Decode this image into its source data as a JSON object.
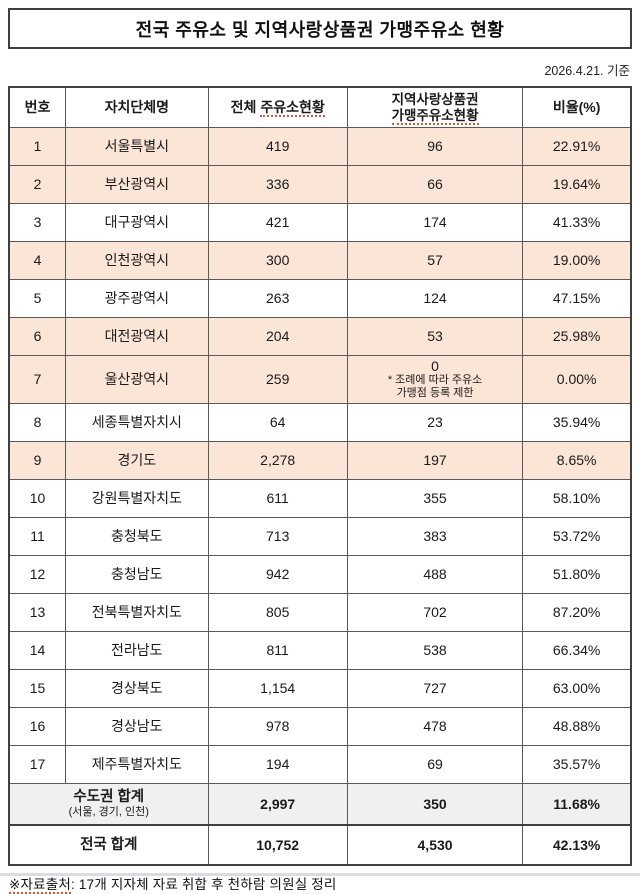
{
  "title": "전국 주유소 및 지역사랑상품권 가맹주유소 현황",
  "date_note": "2026.4.21. 기준",
  "colors": {
    "highlight_row": "#FBE5D6",
    "summary_gray": "#F0F0F0",
    "border": "#595959",
    "squiggle": "#E8502A"
  },
  "table": {
    "headers": {
      "no": "번호",
      "name": "자치단체명",
      "total_prefix": "전체 ",
      "total_main": "주유소현황",
      "aff_line1": "지역사랑상품권",
      "aff_line2": "가맹주유소현황",
      "ratio": "비율(%)"
    },
    "rows": [
      {
        "no": "1",
        "name": "서울특별시",
        "total": "419",
        "affiliated": "96",
        "ratio": "22.91%",
        "highlight": true
      },
      {
        "no": "2",
        "name": "부산광역시",
        "total": "336",
        "affiliated": "66",
        "ratio": "19.64%",
        "highlight": true
      },
      {
        "no": "3",
        "name": "대구광역시",
        "total": "421",
        "affiliated": "174",
        "ratio": "41.33%",
        "highlight": false
      },
      {
        "no": "4",
        "name": "인천광역시",
        "total": "300",
        "affiliated": "57",
        "ratio": "19.00%",
        "highlight": true
      },
      {
        "no": "5",
        "name": "광주광역시",
        "total": "263",
        "affiliated": "124",
        "ratio": "47.15%",
        "highlight": false
      },
      {
        "no": "6",
        "name": "대전광역시",
        "total": "204",
        "affiliated": "53",
        "ratio": "25.98%",
        "highlight": true
      },
      {
        "no": "7",
        "name": "울산광역시",
        "total": "259",
        "affiliated": "0",
        "ratio": "0.00%",
        "highlight": true,
        "note_lines": [
          "* 조례에  따라  주유소",
          "가맹점  등록  제한"
        ]
      },
      {
        "no": "8",
        "name": "세종특별자치시",
        "total": "64",
        "affiliated": "23",
        "ratio": "35.94%",
        "highlight": false
      },
      {
        "no": "9",
        "name": "경기도",
        "total": "2,278",
        "affiliated": "197",
        "ratio": "8.65%",
        "highlight": true
      },
      {
        "no": "10",
        "name": "강원특별자치도",
        "total": "611",
        "affiliated": "355",
        "ratio": "58.10%",
        "highlight": false
      },
      {
        "no": "11",
        "name": "충청북도",
        "total": "713",
        "affiliated": "383",
        "ratio": "53.72%",
        "highlight": false
      },
      {
        "no": "12",
        "name": "충청남도",
        "total": "942",
        "affiliated": "488",
        "ratio": "51.80%",
        "highlight": false
      },
      {
        "no": "13",
        "name": "전북특별자치도",
        "total": "805",
        "affiliated": "702",
        "ratio": "87.20%",
        "highlight": false
      },
      {
        "no": "14",
        "name": "전라남도",
        "total": "811",
        "affiliated": "538",
        "ratio": "66.34%",
        "highlight": false
      },
      {
        "no": "15",
        "name": "경상북도",
        "total": "1,154",
        "affiliated": "727",
        "ratio": "63.00%",
        "highlight": false
      },
      {
        "no": "16",
        "name": "경상남도",
        "total": "978",
        "affiliated": "478",
        "ratio": "48.88%",
        "highlight": false
      },
      {
        "no": "17",
        "name": "제주특별자치도",
        "total": "194",
        "affiliated": "69",
        "ratio": "35.57%",
        "highlight": false
      }
    ],
    "summary_metro": {
      "label_main": "수도권  합계",
      "label_sub": "(서울, 경기, 인천)",
      "total": "2,997",
      "affiliated": "350",
      "ratio": "11.68%"
    },
    "summary_nation": {
      "label_main": "전국  합계",
      "total": "10,752",
      "affiliated": "4,530",
      "ratio": "42.13%"
    }
  },
  "footer": {
    "source_label": "※자료출처",
    "source_rest": ": 17개  지자체  자료  취합  후  천하람  의원실  정리"
  }
}
